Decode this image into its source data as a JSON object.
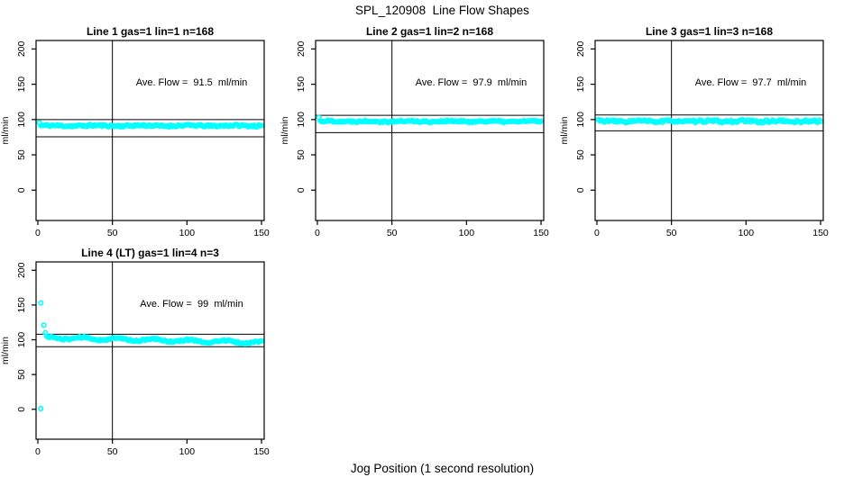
{
  "page": {
    "title": "SPL_120908  Line Flow Shapes",
    "xlabel": "Jog Position (1 second resolution)"
  },
  "colors": {
    "points": "#00FFFF",
    "axis": "#000000",
    "background": "#FFFFFF"
  },
  "chart_data": [
    {
      "type": "scatter",
      "title": "Line 1 gas=1 lin=1 n=168",
      "annotation": "Ave. Flow =  91.5  ml/min",
      "ave_flow": 91.5,
      "n": 168,
      "ylabel": "ml/min",
      "x_ticks": [
        0,
        50,
        100,
        150
      ],
      "y_ticks": [
        0,
        50,
        100,
        150,
        200
      ],
      "xlim": [
        -1.2,
        151.8
      ],
      "ylim": [
        -43,
        212
      ],
      "vline_x": 50,
      "hlines": [
        100,
        75.5
      ],
      "head_points": [
        [
          1,
          95.5
        ]
      ],
      "band": {
        "x_start": 2,
        "x_end": 150,
        "y_start": 91.3,
        "y_end": 91.3,
        "noise": 1.4,
        "wave_amp": 0.4,
        "wave_period": 31,
        "seed": 11
      }
    },
    {
      "type": "scatter",
      "title": "Line 2 gas=1 lin=2 n=168",
      "annotation": "Ave. Flow =  97.9  ml/min",
      "ave_flow": 97.9,
      "n": 168,
      "ylabel": "ml/min",
      "x_ticks": [
        0,
        50,
        100,
        150
      ],
      "y_ticks": [
        0,
        50,
        100,
        150,
        200
      ],
      "xlim": [
        -1.2,
        151.8
      ],
      "ylim": [
        -43,
        212
      ],
      "vline_x": 50,
      "hlines": [
        106,
        81.5
      ],
      "head_points": [
        [
          1,
          103
        ]
      ],
      "band": {
        "x_start": 2,
        "x_end": 150,
        "y_start": 97.6,
        "y_end": 97.3,
        "noise": 1.3,
        "wave_amp": 0.4,
        "wave_period": 27,
        "seed": 22
      }
    },
    {
      "type": "scatter",
      "title": "Line 3 gas=1 lin=3 n=168",
      "annotation": "Ave. Flow =  97.7  ml/min",
      "ave_flow": 97.7,
      "n": 168,
      "ylabel": "ml/min",
      "x_ticks": [
        0,
        50,
        100,
        150
      ],
      "y_ticks": [
        0,
        50,
        100,
        150,
        200
      ],
      "xlim": [
        -1.2,
        151.8
      ],
      "ylim": [
        -43,
        212
      ],
      "vline_x": 50,
      "hlines": [
        106.5,
        84
      ],
      "head_points": [
        [
          1,
          100
        ]
      ],
      "band": {
        "x_start": 2,
        "x_end": 150,
        "y_start": 97.6,
        "y_end": 97.5,
        "noise": 1.7,
        "wave_amp": 0.5,
        "wave_period": 23,
        "seed": 33
      }
    },
    {
      "type": "scatter",
      "title": "Line 4 (LT) gas=1 lin=4 n=3",
      "annotation": "Ave. Flow =  99  ml/min",
      "ave_flow": 99,
      "n": 3,
      "ylabel": "ml/min",
      "x_ticks": [
        0,
        50,
        100,
        150
      ],
      "y_ticks": [
        0,
        50,
        100,
        150,
        200
      ],
      "xlim": [
        -1.2,
        151.8
      ],
      "ylim": [
        -43,
        212
      ],
      "vline_x": 50,
      "hlines": [
        108,
        90
      ],
      "head_points": [
        [
          2,
          1
        ],
        [
          2,
          153
        ],
        [
          4,
          121
        ],
        [
          5,
          110
        ]
      ],
      "band": {
        "x_start": 6,
        "x_end": 150,
        "y_start": 103,
        "y_end": 96,
        "noise": 1.2,
        "wave_amp": 1.6,
        "wave_period": 24,
        "seed": 44
      }
    }
  ]
}
